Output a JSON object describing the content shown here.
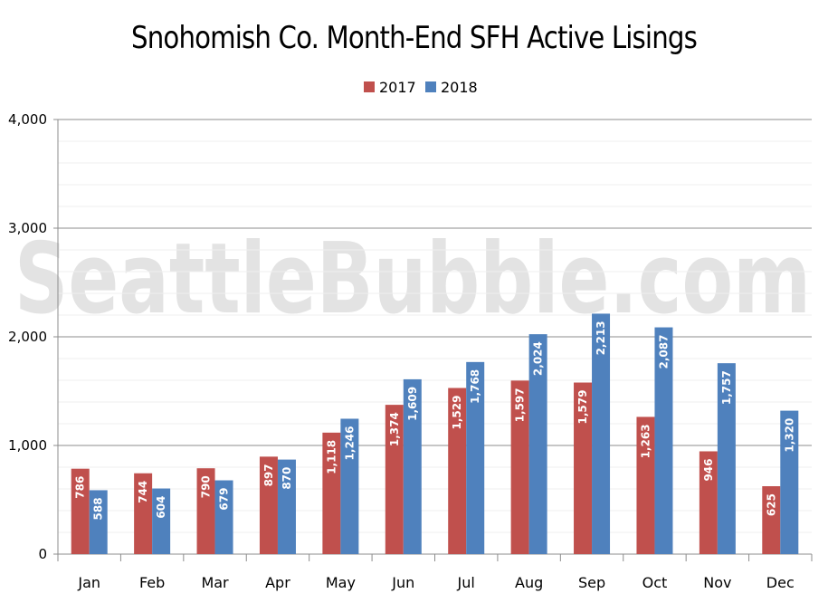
{
  "watermark": "SeattleBubble.com",
  "chart_data": {
    "type": "bar",
    "title": "Snohomish Co. Month-End SFH Active Lisings",
    "xlabel": "",
    "ylabel": "",
    "categories": [
      "Jan",
      "Feb",
      "Mar",
      "Apr",
      "May",
      "Jun",
      "Jul",
      "Aug",
      "Sep",
      "Oct",
      "Nov",
      "Dec"
    ],
    "series": [
      {
        "name": "2017",
        "color": "#c0504d",
        "values": [
          786,
          744,
          790,
          897,
          1118,
          1374,
          1529,
          1597,
          1579,
          1263,
          946,
          625
        ],
        "labels": [
          "786",
          "744",
          "790",
          "897",
          "1,118",
          "1,374",
          "1,529",
          "1,597",
          "1,579",
          "1,263",
          "946",
          "625"
        ]
      },
      {
        "name": "2018",
        "color": "#4f81bd",
        "values": [
          588,
          604,
          679,
          870,
          1246,
          1609,
          1768,
          2024,
          2213,
          2087,
          1757,
          1320
        ],
        "labels": [
          "588",
          "604",
          "679",
          "870",
          "1,246",
          "1,609",
          "1,768",
          "2,024",
          "2,213",
          "2,087",
          "1,757",
          "1,320"
        ]
      }
    ],
    "ylim": [
      0,
      4000
    ],
    "yticks": [
      0,
      1000,
      2000,
      3000,
      4000
    ],
    "ytick_labels": [
      "0",
      "1,000",
      "2,000",
      "3,000",
      "4,000"
    ],
    "grid": true,
    "legend_position": "top-center"
  }
}
